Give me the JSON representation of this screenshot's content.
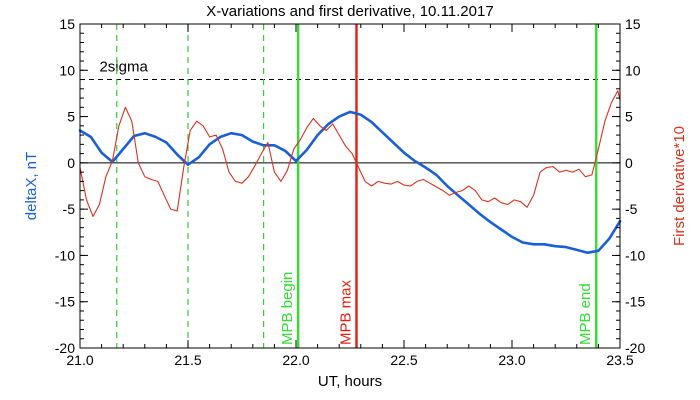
{
  "chart_data": {
    "type": "line",
    "title": "X-variations and first derivative, 10.11.2017",
    "xlabel": "UT, hours",
    "ylabel_left": "deltaX, nT",
    "ylabel_right": "First derivative*10",
    "xlim": [
      21.0,
      23.5
    ],
    "ylim": [
      -20,
      15
    ],
    "x_ticks": [
      21.0,
      21.5,
      22.0,
      22.5,
      23.0,
      23.5
    ],
    "x_tick_labels": [
      "21.0",
      "21.5",
      "22.0",
      "22.5",
      "23.0",
      "23.5"
    ],
    "y_ticks": [
      15,
      10,
      5,
      0,
      -5,
      -10,
      -15,
      -20
    ],
    "y_tick_labels": [
      "15",
      "10",
      "5",
      "0",
      "-5",
      "-10",
      "-15",
      "-20"
    ],
    "grid": false,
    "colors": {
      "deltaX": "#1a5fd6",
      "derivative": "#d8321e",
      "mpb_begin": "#33dd33",
      "mpb_max": "#dd2211",
      "mpb_end": "#33dd33",
      "dashed_green": "#33cc33",
      "axis": "#000000"
    },
    "horizontal_lines": [
      {
        "label": "2sigma",
        "y": 9,
        "style": "dashed"
      },
      {
        "label": "",
        "y": 0,
        "style": "solid"
      }
    ],
    "vertical_markers": [
      {
        "label": "",
        "x": 21.17,
        "style": "dashed",
        "color_key": "dashed_green"
      },
      {
        "label": "",
        "x": 21.5,
        "style": "dashed",
        "color_key": "dashed_green"
      },
      {
        "label": "",
        "x": 21.85,
        "style": "dashed",
        "color_key": "dashed_green"
      },
      {
        "label": "MPB begin",
        "x": 22.01,
        "style": "solid",
        "color_key": "mpb_begin"
      },
      {
        "label": "MPB max",
        "x": 22.28,
        "style": "solid",
        "color_key": "mpb_max"
      },
      {
        "label": "MPB end",
        "x": 23.39,
        "style": "solid",
        "color_key": "mpb_end"
      }
    ],
    "series": [
      {
        "key": "deltaX",
        "x": [
          21.0,
          21.05,
          21.1,
          21.15,
          21.2,
          21.25,
          21.3,
          21.35,
          21.4,
          21.45,
          21.5,
          21.55,
          21.6,
          21.65,
          21.7,
          21.75,
          21.8,
          21.85,
          21.9,
          21.95,
          22.0,
          22.05,
          22.1,
          22.15,
          22.2,
          22.25,
          22.3,
          22.35,
          22.4,
          22.45,
          22.5,
          22.55,
          22.6,
          22.65,
          22.7,
          22.75,
          22.8,
          22.85,
          22.9,
          22.95,
          23.0,
          23.05,
          23.1,
          23.15,
          23.2,
          23.25,
          23.3,
          23.35,
          23.4,
          23.45,
          23.5
        ],
        "values": [
          3.5,
          2.8,
          1.1,
          0.1,
          1.5,
          2.9,
          3.2,
          2.8,
          2.2,
          0.9,
          -0.2,
          0.6,
          2.0,
          2.8,
          3.2,
          3.0,
          2.3,
          1.9,
          1.9,
          1.3,
          0.2,
          1.4,
          3.0,
          4.2,
          5.0,
          5.5,
          5.2,
          4.4,
          3.3,
          2.2,
          1.1,
          0.2,
          -0.5,
          -1.3,
          -2.5,
          -3.5,
          -4.5,
          -5.5,
          -6.4,
          -7.2,
          -8.0,
          -8.6,
          -8.8,
          -8.8,
          -9.0,
          -9.1,
          -9.4,
          -9.7,
          -9.5,
          -8.2,
          -6.3
        ]
      },
      {
        "key": "derivative",
        "x": [
          21.0,
          21.03,
          21.06,
          21.09,
          21.12,
          21.15,
          21.18,
          21.21,
          21.24,
          21.27,
          21.3,
          21.33,
          21.36,
          21.39,
          21.42,
          21.45,
          21.48,
          21.51,
          21.54,
          21.57,
          21.6,
          21.63,
          21.66,
          21.69,
          21.72,
          21.75,
          21.78,
          21.81,
          21.84,
          21.87,
          21.9,
          21.93,
          21.96,
          21.99,
          22.02,
          22.05,
          22.08,
          22.11,
          22.14,
          22.17,
          22.2,
          22.23,
          22.26,
          22.29,
          22.32,
          22.35,
          22.38,
          22.41,
          22.44,
          22.47,
          22.5,
          22.53,
          22.56,
          22.59,
          22.62,
          22.65,
          22.68,
          22.71,
          22.74,
          22.77,
          22.8,
          22.83,
          22.86,
          22.89,
          22.92,
          22.95,
          22.98,
          23.01,
          23.04,
          23.07,
          23.1,
          23.13,
          23.16,
          23.19,
          23.22,
          23.25,
          23.28,
          23.31,
          23.34,
          23.37,
          23.4,
          23.43,
          23.46,
          23.49,
          23.5
        ],
        "values": [
          -0.5,
          -4.0,
          -5.8,
          -4.5,
          -1.5,
          0.2,
          4.0,
          6.0,
          4.5,
          0.0,
          -1.5,
          -1.8,
          -2.0,
          -3.5,
          -5.0,
          -5.2,
          -0.5,
          3.5,
          4.5,
          4.0,
          2.8,
          3.0,
          1.5,
          -1.0,
          -2.0,
          -2.2,
          -1.5,
          -0.3,
          1.0,
          2.2,
          -1.0,
          -2.0,
          -0.8,
          1.5,
          2.5,
          3.8,
          4.8,
          4.0,
          3.5,
          4.2,
          3.0,
          1.8,
          1.0,
          -0.5,
          -2.0,
          -2.5,
          -2.0,
          -2.2,
          -2.3,
          -2.0,
          -2.4,
          -2.5,
          -2.0,
          -1.8,
          -2.2,
          -2.6,
          -3.0,
          -3.5,
          -3.2,
          -3.0,
          -2.5,
          -3.0,
          -4.0,
          -4.2,
          -3.8,
          -4.3,
          -4.5,
          -4.0,
          -4.2,
          -4.8,
          -3.5,
          -1.0,
          -0.5,
          -0.4,
          -1.0,
          -0.8,
          -1.0,
          -0.7,
          -1.5,
          -1.3,
          1.5,
          4.5,
          6.5,
          7.8,
          6.8
        ]
      }
    ],
    "annotations": {
      "two_sigma": "2sigma",
      "mpb_begin": "MPB begin",
      "mpb_max": "MPB max",
      "mpb_end": "MPB end"
    }
  }
}
